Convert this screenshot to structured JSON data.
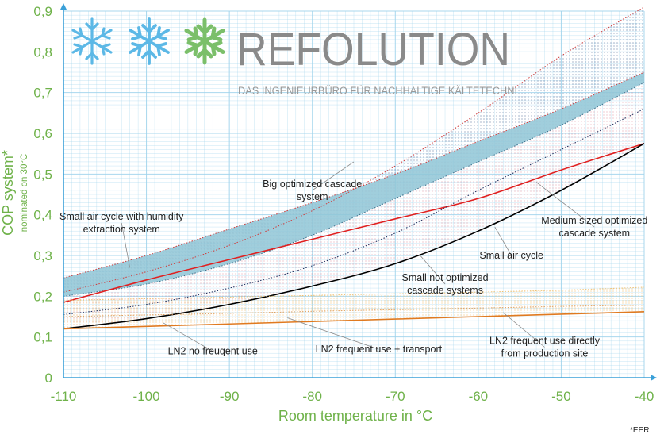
{
  "brand": {
    "name": "REFOLUTION",
    "tagline": "DAS INGENIEURBÜRO FÜR NACHHALTIGE KÄLTETECHNI",
    "icons": [
      "snowflake-icon",
      "snowflake-icon",
      "snowflake-icon"
    ],
    "colors": {
      "flake_blue": "#5cb8e6",
      "flake_green": "#7bbf6a",
      "text_grey": "#8a8a8a"
    }
  },
  "footnote": "*EER",
  "chart_data": {
    "type": "line",
    "title": "",
    "xlabel": "Room temperature in °C",
    "ylabel": "COP system*",
    "ylabel_sub": "nominated on 30°C",
    "xlim": [
      -110,
      -40
    ],
    "ylim": [
      0,
      0.9
    ],
    "x_ticks": [
      -110,
      -100,
      -90,
      -80,
      -70,
      -60,
      -50,
      -40
    ],
    "x_tick_labels": [
      "-110",
      "-100",
      "-90",
      "-80",
      "-70",
      "-60",
      "-50",
      "-40"
    ],
    "y_ticks": [
      0,
      0.1,
      0.2,
      0.3,
      0.4,
      0.5,
      0.6,
      0.7,
      0.8,
      0.9
    ],
    "y_tick_labels": [
      "0",
      "0,1",
      "0,2",
      "0,3",
      "0,4",
      "0,5",
      "0,6",
      "0,7",
      "0,8",
      "0,9"
    ],
    "colors": {
      "axis_text": "#6fb24a",
      "grid": "#9fd3ec",
      "axis_line": "#3aa0d8"
    },
    "x": [
      -110,
      -100,
      -90,
      -80,
      -70,
      -60,
      -50,
      -40
    ],
    "series": [
      {
        "name": "Big optimized cascade system (upper)",
        "color": "#d03a3a",
        "style": "dotted",
        "values": [
          0.245,
          0.3,
          0.365,
          0.43,
          0.5,
          0.58,
          0.66,
          0.75
        ]
      },
      {
        "name": "Medium sized optimized cascade system (lower)",
        "color": "#3b6e8a",
        "style": "dotted",
        "values": [
          0.2,
          0.23,
          0.28,
          0.35,
          0.44,
          0.53,
          0.62,
          0.725
        ]
      },
      {
        "name": "Small air cycle",
        "color": "#e02020",
        "style": "solid",
        "values": [
          0.185,
          0.24,
          0.29,
          0.34,
          0.39,
          0.44,
          0.51,
          0.575
        ]
      },
      {
        "name": "Small not optimized cascade systems",
        "color": "#1a2a5a",
        "style": "dotted",
        "values": [
          0.155,
          0.18,
          0.22,
          0.275,
          0.355,
          0.46,
          0.56,
          0.66
        ]
      },
      {
        "name": "LN2 no freuqent use",
        "color": "#000000",
        "style": "solid",
        "values": [
          0.12,
          0.145,
          0.18,
          0.225,
          0.28,
          0.36,
          0.46,
          0.575
        ]
      },
      {
        "name": "Small air cycle with humidity extraction system",
        "color": "#d03a3a",
        "style": "dotted",
        "values": [
          0.21,
          0.26,
          0.325,
          0.41,
          0.52,
          0.65,
          0.79,
          0.91
        ]
      },
      {
        "name": "LN2 frequent use + transport",
        "color": "#e07a20",
        "style": "solid",
        "values": [
          0.12,
          0.126,
          0.132,
          0.138,
          0.144,
          0.15,
          0.156,
          0.162
        ]
      },
      {
        "name": "LN2 frequent use directly from production site (upper)",
        "color": "#f0c070",
        "style": "dotted",
        "values": [
          0.19,
          0.194,
          0.198,
          0.202,
          0.206,
          0.21,
          0.215,
          0.222
        ]
      },
      {
        "name": "LN2 frequent use directly from production site (mid)",
        "color": "#e0a060",
        "style": "dotted",
        "values": [
          0.15,
          0.154,
          0.158,
          0.163,
          0.167,
          0.171,
          0.175,
          0.178
        ]
      }
    ],
    "bands": [
      {
        "name": "Big optimized cascade system band",
        "color": "#8fc6d6",
        "upper": [
          0.245,
          0.3,
          0.365,
          0.43,
          0.5,
          0.58,
          0.66,
          0.75
        ],
        "lower": [
          0.2,
          0.23,
          0.28,
          0.35,
          0.44,
          0.53,
          0.62,
          0.725
        ]
      }
    ],
    "annotations": [
      {
        "text": [
          "Big optimized cascade",
          "system"
        ],
        "x": -80,
        "y": 0.46
      },
      {
        "text": [
          "Small air cycle with humidity",
          "extraction system"
        ],
        "x": -103,
        "y": 0.38
      },
      {
        "text": [
          "Medium sized optimized",
          "cascade system"
        ],
        "x": -46,
        "y": 0.37
      },
      {
        "text": [
          "Small air cycle"
        ],
        "x": -56,
        "y": 0.3
      },
      {
        "text": [
          "Small not optimized",
          "cascade systems"
        ],
        "x": -64,
        "y": 0.23
      },
      {
        "text": [
          "LN2 no freuqent use"
        ],
        "x": -92,
        "y": 0.065
      },
      {
        "text": [
          "LN2 frequent use + transport"
        ],
        "x": -72,
        "y": 0.07
      },
      {
        "text": [
          "LN2 frequent use directly",
          "from production site"
        ],
        "x": -52,
        "y": 0.075
      }
    ]
  }
}
